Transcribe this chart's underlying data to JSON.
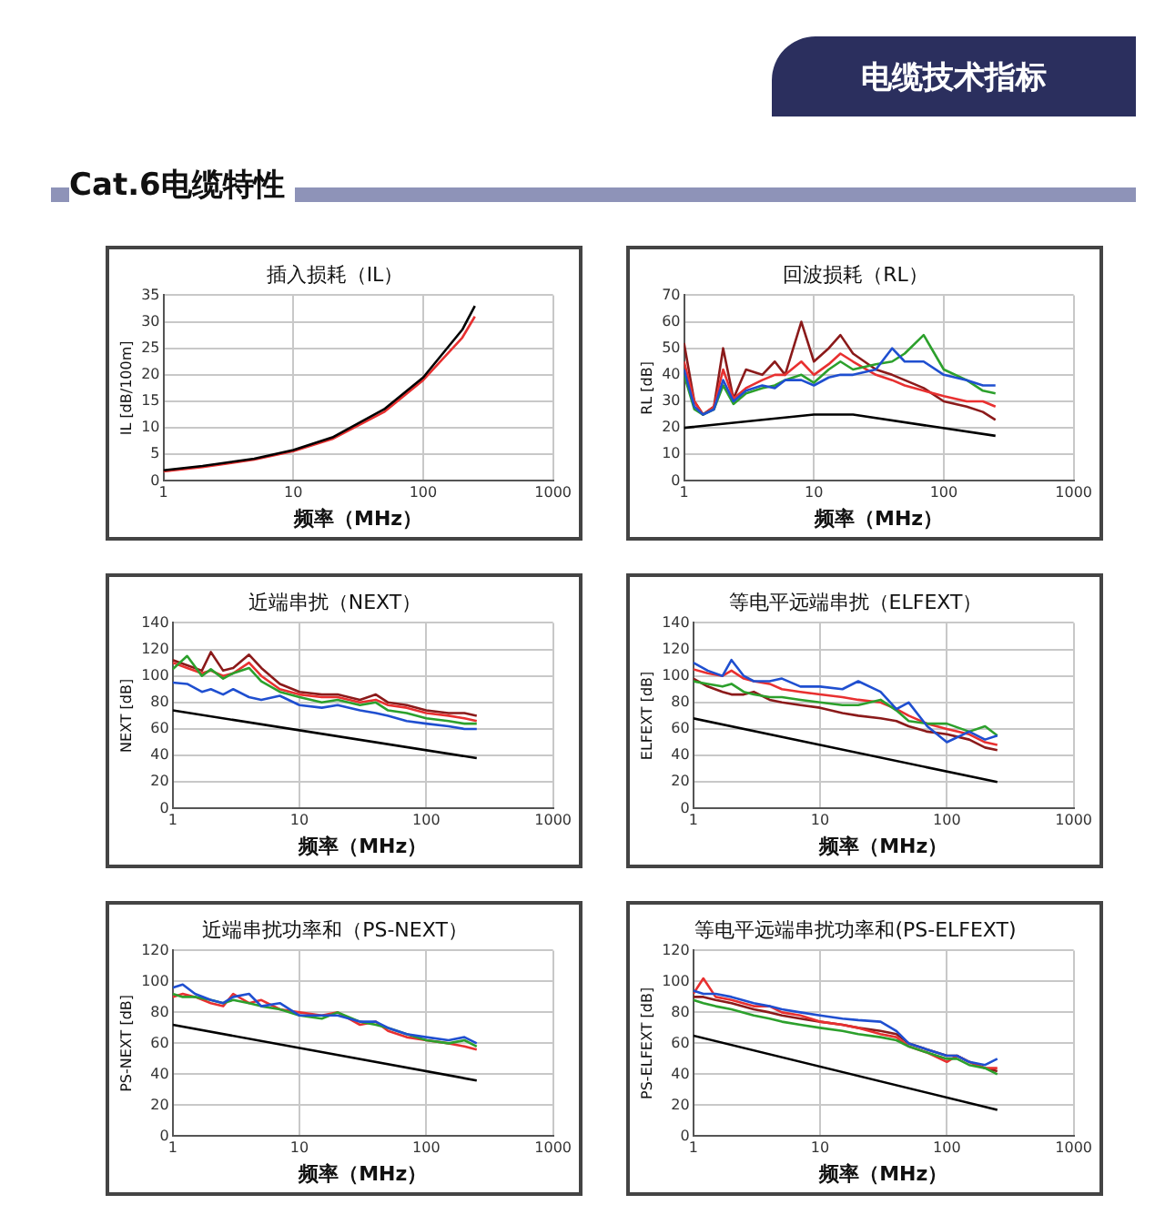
{
  "chart_data": [
    {
      "type": "other",
      "title": "电缆技术指标",
      "subtitle": "Cat.6电缆特性"
    },
    {
      "type": "line",
      "title": "插入损耗（IL）",
      "xlabel": "频率（MHz）",
      "ylabel": "IL [dB/100m]",
      "log": "x",
      "grid": true,
      "xlim": [
        1,
        1000
      ],
      "xticks": [
        1,
        10,
        100,
        1000
      ],
      "ylim": [
        0,
        35
      ],
      "yticks": [
        0,
        5,
        10,
        15,
        20,
        25,
        30,
        35
      ],
      "x": [
        1,
        2,
        5,
        10,
        20,
        50,
        100,
        200,
        250
      ],
      "series": [
        {
          "color": "#000000",
          "values": [
            2,
            2.8,
            4.2,
            5.8,
            8.2,
            13.5,
            19.5,
            28.5,
            33
          ]
        },
        {
          "color": "#e83030",
          "values": [
            1.8,
            2.6,
            4,
            5.6,
            7.9,
            13,
            19,
            27,
            31
          ]
        }
      ]
    },
    {
      "type": "line",
      "title": "回波损耗（RL）",
      "xlabel": "频率（MHz）",
      "ylabel": "RL [dB]",
      "log": "x",
      "grid": true,
      "xlim": [
        1,
        1000
      ],
      "xticks": [
        1,
        10,
        100,
        1000
      ],
      "ylim": [
        0,
        70
      ],
      "yticks": [
        0,
        10,
        20,
        30,
        40,
        50,
        60,
        70
      ],
      "x": [
        1,
        1.2,
        1.4,
        1.7,
        2,
        2.4,
        3,
        4,
        5,
        6,
        8,
        10,
        13,
        16,
        20,
        30,
        40,
        50,
        70,
        100,
        150,
        200,
        250
      ],
      "series": [
        {
          "color": "#1f4fd0",
          "values": [
            42,
            28,
            25,
            27,
            38,
            30,
            34,
            36,
            35,
            38,
            38,
            36,
            39,
            40,
            40,
            42,
            50,
            45,
            45,
            40,
            38,
            36,
            36
          ]
        },
        {
          "color": "#2ca02c",
          "values": [
            40,
            27,
            25,
            27,
            36,
            29,
            33,
            35,
            36,
            38,
            40,
            37,
            42,
            45,
            42,
            44,
            45,
            48,
            55,
            42,
            38,
            34,
            33
          ]
        },
        {
          "color": "#e83030",
          "values": [
            45,
            30,
            25,
            28,
            42,
            31,
            35,
            38,
            40,
            40,
            45,
            40,
            44,
            48,
            45,
            40,
            38,
            36,
            34,
            32,
            30,
            30,
            28
          ]
        },
        {
          "color": "#8b1a1a",
          "values": [
            52,
            30,
            25,
            28,
            50,
            31,
            42,
            40,
            45,
            40,
            60,
            45,
            50,
            55,
            48,
            42,
            40,
            38,
            35,
            30,
            28,
            26,
            23
          ]
        },
        {
          "color": "#000000",
          "x": [
            1,
            10,
            20,
            250
          ],
          "values": [
            20,
            25,
            25,
            17
          ]
        }
      ]
    },
    {
      "type": "line",
      "title": "近端串扰（NEXT）",
      "xlabel": "频率（MHz）",
      "ylabel": "NEXT [dB]",
      "log": "x",
      "grid": true,
      "xlim": [
        1,
        1000
      ],
      "xticks": [
        1,
        10,
        100,
        1000
      ],
      "ylim": [
        0,
        140
      ],
      "yticks": [
        0,
        20,
        40,
        60,
        80,
        100,
        120,
        140
      ],
      "x": [
        1,
        1.3,
        1.7,
        2,
        2.5,
        3,
        4,
        5,
        7,
        10,
        15,
        20,
        30,
        40,
        50,
        70,
        100,
        150,
        200,
        250
      ],
      "series": [
        {
          "color": "#1f4fd0",
          "values": [
            95,
            94,
            88,
            90,
            86,
            90,
            84,
            82,
            85,
            78,
            76,
            78,
            74,
            72,
            70,
            66,
            64,
            62,
            60,
            60
          ]
        },
        {
          "color": "#2ca02c",
          "values": [
            105,
            115,
            100,
            105,
            98,
            102,
            106,
            96,
            88,
            84,
            80,
            82,
            78,
            80,
            74,
            72,
            68,
            66,
            64,
            64
          ]
        },
        {
          "color": "#e83030",
          "values": [
            110,
            106,
            102,
            104,
            100,
            102,
            110,
            100,
            90,
            86,
            84,
            84,
            80,
            82,
            78,
            76,
            72,
            70,
            68,
            66
          ]
        },
        {
          "color": "#8b1a1a",
          "values": [
            112,
            108,
            104,
            118,
            104,
            106,
            116,
            106,
            94,
            88,
            86,
            86,
            82,
            86,
            80,
            78,
            74,
            72,
            72,
            70
          ]
        },
        {
          "color": "#000000",
          "x": [
            1,
            250
          ],
          "values": [
            74,
            38
          ]
        }
      ]
    },
    {
      "type": "line",
      "title": "等电平远端串扰（ELFEXT）",
      "xlabel": "频率（MHz）",
      "ylabel": "ELFEXT [dB]",
      "log": "x",
      "grid": true,
      "xlim": [
        1,
        1000
      ],
      "xticks": [
        1,
        10,
        100,
        1000
      ],
      "ylim": [
        0,
        140
      ],
      "yticks": [
        0,
        20,
        40,
        60,
        80,
        100,
        120,
        140
      ],
      "x": [
        1,
        1.3,
        1.7,
        2,
        2.5,
        3,
        4,
        5,
        7,
        10,
        15,
        20,
        30,
        40,
        50,
        70,
        100,
        150,
        200,
        250
      ],
      "series": [
        {
          "color": "#1f4fd0",
          "values": [
            110,
            104,
            100,
            112,
            100,
            96,
            96,
            98,
            92,
            92,
            90,
            96,
            88,
            75,
            80,
            62,
            50,
            58,
            52,
            55
          ]
        },
        {
          "color": "#2ca02c",
          "values": [
            96,
            94,
            92,
            94,
            88,
            86,
            84,
            84,
            82,
            80,
            78,
            78,
            82,
            74,
            66,
            64,
            64,
            58,
            62,
            55
          ]
        },
        {
          "color": "#e83030",
          "values": [
            105,
            102,
            100,
            104,
            98,
            96,
            94,
            90,
            88,
            86,
            84,
            82,
            80,
            75,
            70,
            64,
            60,
            56,
            50,
            48
          ]
        },
        {
          "color": "#8b1a1a",
          "values": [
            98,
            92,
            88,
            86,
            86,
            88,
            82,
            80,
            78,
            76,
            72,
            70,
            68,
            66,
            62,
            58,
            56,
            52,
            46,
            44
          ]
        },
        {
          "color": "#000000",
          "x": [
            1,
            250
          ],
          "values": [
            68,
            20
          ]
        }
      ]
    },
    {
      "type": "line",
      "title": "近端串扰功率和（PS-NEXT）",
      "xlabel": "频率（MHz）",
      "ylabel": "PS-NEXT [dB]",
      "log": "x",
      "grid": true,
      "xlim": [
        1,
        1000
      ],
      "xticks": [
        1,
        10,
        100,
        1000
      ],
      "ylim": [
        0,
        120
      ],
      "yticks": [
        0,
        20,
        40,
        60,
        80,
        100,
        120
      ],
      "x": [
        1,
        1.2,
        1.5,
        2,
        2.5,
        3,
        4,
        5,
        7,
        10,
        15,
        20,
        30,
        40,
        50,
        70,
        100,
        150,
        200,
        250
      ],
      "series": [
        {
          "color": "#1f4fd0",
          "values": [
            96,
            98,
            92,
            88,
            86,
            90,
            92,
            84,
            86,
            78,
            78,
            78,
            74,
            74,
            70,
            66,
            64,
            62,
            64,
            60
          ]
        },
        {
          "color": "#2ca02c",
          "values": [
            92,
            90,
            90,
            88,
            86,
            88,
            86,
            84,
            82,
            78,
            76,
            80,
            74,
            72,
            70,
            66,
            62,
            60,
            62,
            58
          ]
        },
        {
          "color": "#e83030",
          "values": [
            90,
            92,
            90,
            86,
            84,
            92,
            86,
            88,
            82,
            80,
            78,
            80,
            72,
            74,
            68,
            64,
            62,
            60,
            58,
            56
          ]
        },
        {
          "color": "#000000",
          "x": [
            1,
            250
          ],
          "values": [
            72,
            36
          ]
        }
      ]
    },
    {
      "type": "line",
      "title": "等电平远端串扰功率和(PS-ELFEXT)",
      "xlabel": "频率（MHz）",
      "ylabel": "PS-ELFEXT [dB]",
      "log": "x",
      "grid": true,
      "xlim": [
        1,
        1000
      ],
      "xticks": [
        1,
        10,
        100,
        1000
      ],
      "ylim": [
        0,
        120
      ],
      "yticks": [
        0,
        20,
        40,
        60,
        80,
        100,
        120
      ],
      "x": [
        1,
        1.2,
        1.5,
        2,
        3,
        4,
        5,
        7,
        10,
        15,
        20,
        30,
        40,
        50,
        70,
        100,
        120,
        150,
        200,
        250
      ],
      "series": [
        {
          "color": "#1f4fd0",
          "values": [
            94,
            92,
            92,
            90,
            86,
            84,
            82,
            80,
            78,
            76,
            75,
            74,
            68,
            60,
            56,
            52,
            52,
            48,
            46,
            50
          ]
        },
        {
          "color": "#2ca02c",
          "values": [
            88,
            86,
            84,
            82,
            78,
            76,
            74,
            72,
            70,
            68,
            66,
            64,
            62,
            58,
            54,
            50,
            50,
            46,
            44,
            40
          ]
        },
        {
          "color": "#e83030",
          "values": [
            92,
            102,
            90,
            88,
            84,
            84,
            80,
            78,
            74,
            72,
            70,
            66,
            64,
            58,
            54,
            48,
            52,
            48,
            44,
            44
          ]
        },
        {
          "color": "#8b1a1a",
          "values": [
            90,
            90,
            88,
            86,
            82,
            80,
            78,
            76,
            74,
            72,
            70,
            68,
            66,
            60,
            56,
            52,
            52,
            48,
            44,
            42
          ]
        },
        {
          "color": "#000000",
          "x": [
            1,
            250
          ],
          "values": [
            65,
            17
          ]
        }
      ]
    }
  ]
}
